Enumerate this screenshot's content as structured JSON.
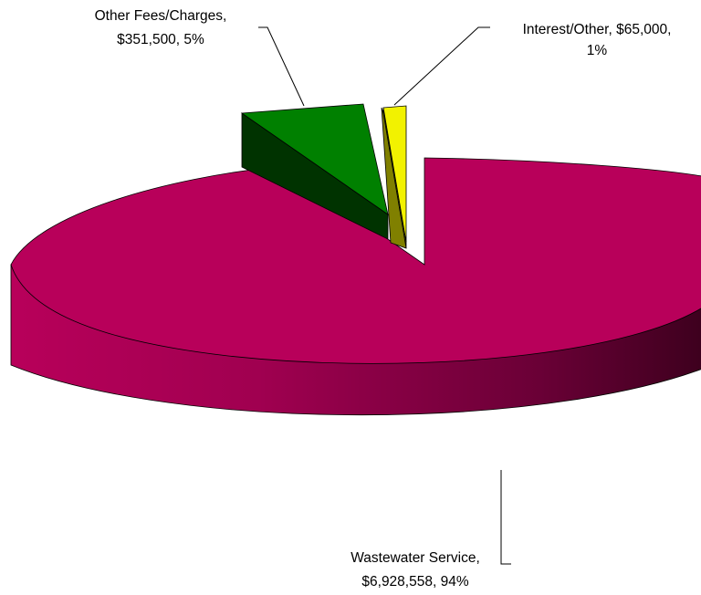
{
  "chart_data": {
    "type": "pie",
    "title": "",
    "style": "3d-exploded",
    "slices": [
      {
        "name": "Wastewater Service",
        "value": 6928558,
        "value_label": "$6,928,558",
        "percent": 94,
        "percent_label": "94%",
        "color": "#B8005A",
        "exploded": false
      },
      {
        "name": "Other Fees/Charges",
        "value": 351500,
        "value_label": "$351,500",
        "percent": 5,
        "percent_label": "5%",
        "color": "#008000",
        "exploded": true
      },
      {
        "name": "Interest/Other",
        "value": 65000,
        "value_label": "$65,000",
        "percent": 1,
        "percent_label": "1%",
        "color": "#F2F200",
        "exploded": true
      }
    ],
    "labels": {
      "wastewater": {
        "line1": "Wastewater Service,",
        "line2": "$6,928,558, 94%"
      },
      "other_fees": {
        "line1": "Other Fees/Charges,",
        "line2": "$351,500, 5%"
      },
      "interest": {
        "line1": "Interest/Other, $65,000,",
        "line2": "1%"
      }
    }
  }
}
